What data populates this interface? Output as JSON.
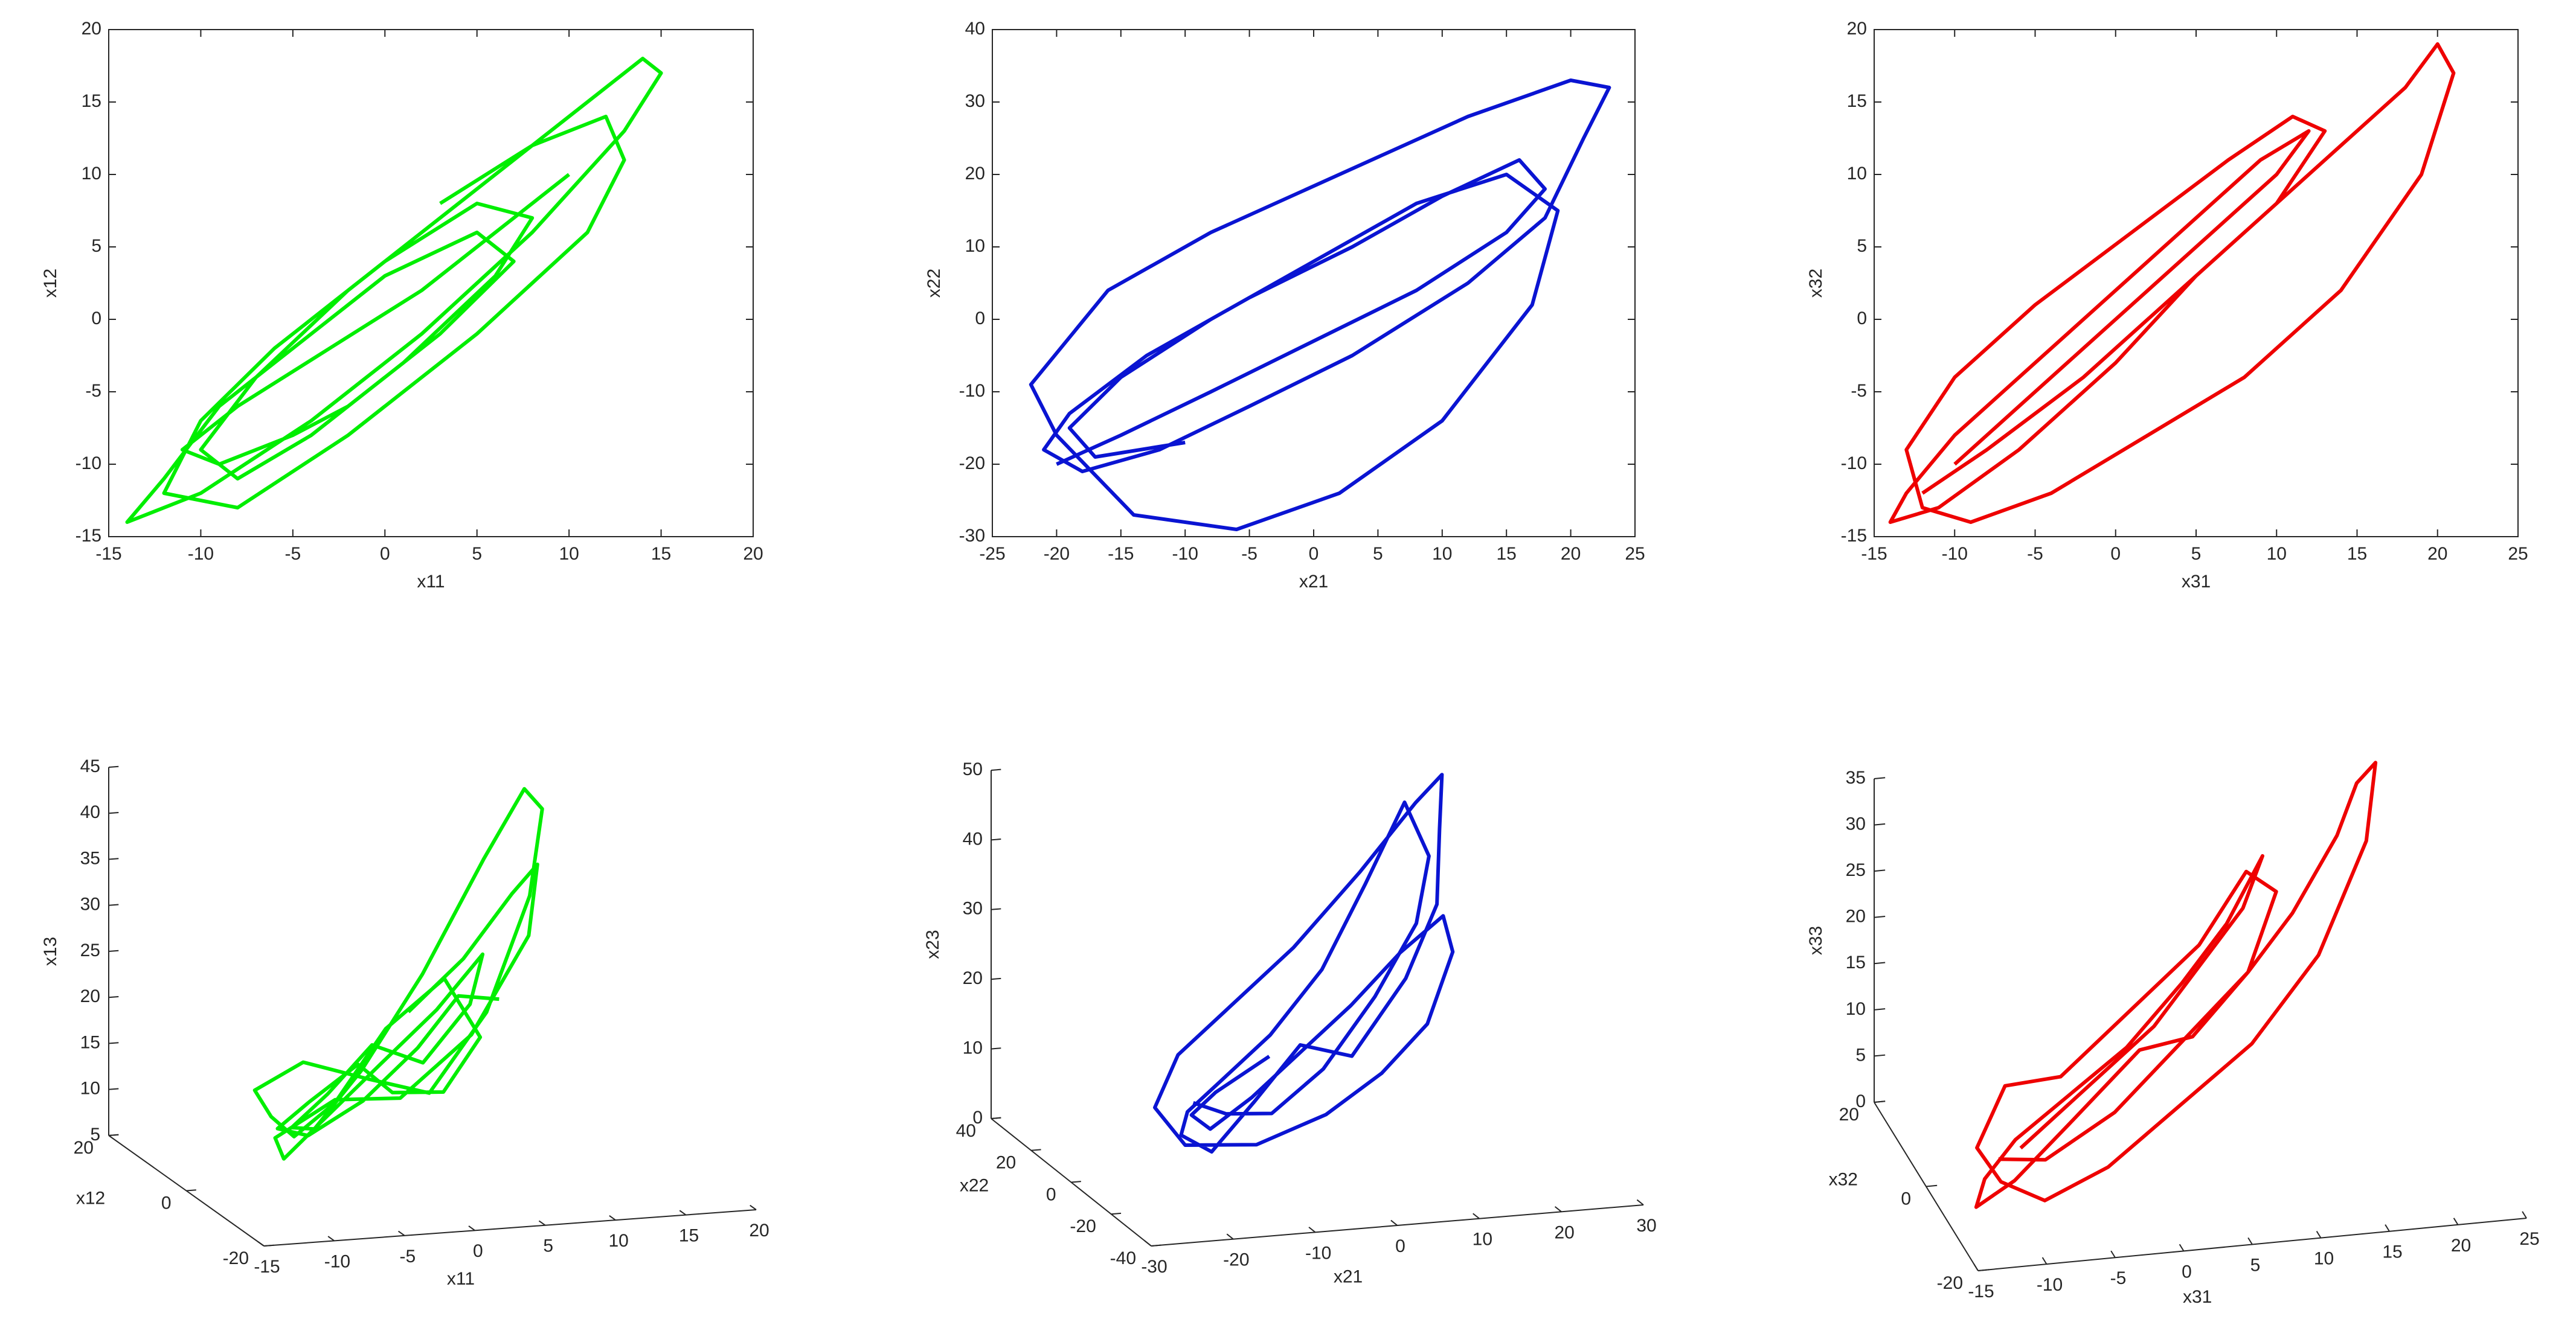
{
  "chart_data": [
    {
      "type": "line",
      "xlabel": "x11",
      "ylabel": "x12",
      "color": "#00ee00",
      "xlim": [
        -15,
        20
      ],
      "ylim": [
        -15,
        20
      ],
      "xticks": [
        -15,
        -10,
        -5,
        0,
        5,
        10,
        15,
        20
      ],
      "yticks": [
        -15,
        -10,
        -5,
        0,
        5,
        10,
        15,
        20
      ],
      "x": [
        10,
        6,
        2,
        -3,
        -8,
        -11,
        -9,
        -5,
        -2,
        3,
        7,
        5,
        0,
        -5,
        -9,
        -12,
        -14,
        -10,
        -4,
        2,
        8,
        13,
        15,
        14,
        10,
        4,
        -2,
        -7,
        -10,
        -8,
        -4,
        1,
        6,
        8,
        5,
        0,
        -6,
        -10,
        -12,
        -8,
        -2,
        5,
        11,
        13,
        12,
        8,
        3
      ],
      "y": [
        10,
        6,
        2,
        -2,
        -6,
        -9,
        -10,
        -8,
        -6,
        -1,
        4,
        6,
        3,
        -2,
        -6,
        -11,
        -14,
        -12,
        -7,
        -1,
        6,
        13,
        17,
        18,
        14,
        8,
        2,
        -4,
        -9,
        -11,
        -8,
        -3,
        3,
        7,
        8,
        4,
        -2,
        -7,
        -12,
        -13,
        -8,
        -1,
        6,
        11,
        14,
        12,
        8
      ]
    },
    {
      "type": "line",
      "xlabel": "x21",
      "ylabel": "x22",
      "color": "#0a14d2",
      "xlim": [
        -25,
        25
      ],
      "ylim": [
        -30,
        40
      ],
      "xticks": [
        -25,
        -20,
        -15,
        -10,
        -5,
        0,
        5,
        10,
        15,
        20,
        25
      ],
      "yticks": [
        -30,
        -20,
        -10,
        0,
        10,
        20,
        30,
        40
      ],
      "x": [
        -20,
        -15,
        -8,
        0,
        8,
        15,
        18,
        16,
        10,
        3,
        -5,
        -13,
        -19,
        -21,
        -18,
        -12,
        -5,
        3,
        12,
        18,
        21,
        23,
        20,
        12,
        2,
        -8,
        -16,
        -22,
        -20,
        -14,
        -6,
        2,
        10,
        17,
        19,
        15,
        8,
        0,
        -8,
        -15,
        -19,
        -17,
        -10
      ],
      "y": [
        -20,
        -16,
        -10,
        -3,
        4,
        12,
        18,
        22,
        17,
        10,
        3,
        -5,
        -13,
        -18,
        -21,
        -18,
        -12,
        -5,
        5,
        14,
        25,
        32,
        33,
        28,
        20,
        12,
        4,
        -9,
        -16,
        -27,
        -29,
        -24,
        -14,
        2,
        15,
        20,
        16,
        8,
        0,
        -8,
        -15,
        -19,
        -17
      ]
    },
    {
      "type": "line",
      "xlabel": "x31",
      "ylabel": "x32",
      "color": "#ee0000",
      "xlim": [
        -15,
        25
      ],
      "ylim": [
        -15,
        20
      ],
      "xticks": [
        -15,
        -10,
        -5,
        0,
        5,
        10,
        15,
        20,
        25
      ],
      "yticks": [
        -15,
        -10,
        -5,
        0,
        5,
        10,
        15,
        20
      ],
      "x": [
        -10,
        -6,
        -2,
        2,
        6,
        10,
        12,
        9,
        5,
        0,
        -5,
        -10,
        -13,
        -14,
        -11,
        -6,
        0,
        5,
        10,
        14,
        18,
        20,
        21,
        19,
        14,
        8,
        2,
        -4,
        -9,
        -12,
        -13,
        -10,
        -5,
        1,
        7,
        11,
        13,
        10,
        4,
        -2,
        -8,
        -12
      ],
      "y": [
        -10,
        -6,
        -2,
        2,
        6,
        10,
        13,
        11,
        7,
        2,
        -3,
        -8,
        -12,
        -14,
        -13,
        -9,
        -3,
        3,
        8,
        12,
        16,
        19,
        17,
        10,
        2,
        -4,
        -8,
        -12,
        -14,
        -13,
        -9,
        -4,
        1,
        6,
        11,
        14,
        13,
        8,
        2,
        -4,
        -9,
        -12
      ]
    },
    {
      "type": "line3d",
      "xlabel": "x11",
      "ylabel": "x12",
      "zlabel": "x13",
      "color": "#00ee00",
      "xlim": [
        -15,
        20
      ],
      "ylim": [
        -20,
        20
      ],
      "zlim": [
        5,
        45
      ],
      "xticks": [
        -15,
        -10,
        -5,
        0,
        5,
        10,
        15,
        20
      ],
      "yticks": [
        -20,
        0,
        20
      ],
      "zticks": [
        5,
        10,
        15,
        20,
        25,
        30,
        35,
        40,
        45
      ],
      "x": [
        10,
        6,
        2,
        -3,
        -8,
        -11,
        -9,
        -5,
        -2,
        3,
        7,
        5,
        0,
        -5,
        -9,
        -12,
        -14,
        -10,
        -4,
        2,
        8,
        13,
        15,
        14,
        10,
        4,
        -2,
        -7,
        -10,
        -8,
        -4,
        1,
        6,
        8,
        5,
        0,
        -6,
        -10,
        -12,
        -8,
        -2,
        5,
        11,
        13,
        12,
        8,
        3
      ],
      "y": [
        10,
        6,
        2,
        -2,
        -6,
        -9,
        -10,
        -8,
        -6,
        -1,
        4,
        6,
        3,
        -2,
        -6,
        -11,
        -14,
        -12,
        -7,
        -1,
        6,
        13,
        17,
        18,
        14,
        8,
        2,
        -4,
        -9,
        -11,
        -8,
        -3,
        3,
        7,
        8,
        4,
        -2,
        -7,
        -12,
        -13,
        -8,
        -1,
        6,
        11,
        14,
        12,
        8
      ],
      "z": [
        20,
        22,
        18,
        14,
        12,
        14,
        17,
        20,
        16,
        14,
        18,
        24,
        20,
        14,
        12,
        16,
        20,
        22,
        18,
        14,
        20,
        30,
        38,
        40,
        34,
        24,
        16,
        12,
        14,
        18,
        22,
        18,
        22,
        26,
        20,
        16,
        12,
        10,
        14,
        18,
        16,
        20,
        28,
        34,
        30,
        24,
        20
      ]
    },
    {
      "type": "line3d",
      "xlabel": "x21",
      "ylabel": "x22",
      "zlabel": "x23",
      "color": "#0a14d2",
      "xlim": [
        -30,
        30
      ],
      "ylim": [
        -40,
        40
      ],
      "zlim": [
        0,
        50
      ],
      "xticks": [
        -30,
        -20,
        -10,
        0,
        10,
        20,
        30
      ],
      "yticks": [
        -40,
        -20,
        0,
        20,
        40
      ],
      "zticks": [
        0,
        10,
        20,
        30,
        40,
        50
      ],
      "x": [
        -20,
        -15,
        -8,
        0,
        8,
        15,
        18,
        16,
        10,
        3,
        -5,
        -13,
        -19,
        -21,
        -18,
        -12,
        -5,
        3,
        12,
        18,
        21,
        23,
        20,
        12,
        2,
        -8,
        -16,
        -22,
        -20,
        -14,
        -6,
        2,
        10,
        17,
        19,
        15,
        8,
        0,
        -8,
        -15,
        -19,
        -17,
        -10
      ],
      "y": [
        -20,
        -16,
        -10,
        -3,
        4,
        12,
        18,
        22,
        17,
        10,
        3,
        -5,
        -13,
        -18,
        -21,
        -18,
        -12,
        -5,
        5,
        14,
        25,
        32,
        33,
        28,
        20,
        12,
        4,
        -9,
        -16,
        -27,
        -29,
        -24,
        -14,
        2,
        15,
        20,
        16,
        8,
        0,
        -8,
        -15,
        -19,
        -17
      ],
      "z": [
        15,
        12,
        10,
        14,
        22,
        30,
        38,
        45,
        35,
        25,
        18,
        14,
        12,
        10,
        8,
        14,
        20,
        16,
        24,
        32,
        40,
        46,
        42,
        34,
        26,
        20,
        16,
        12,
        8,
        10,
        14,
        18,
        22,
        28,
        30,
        24,
        18,
        14,
        10,
        8,
        12,
        16,
        20
      ]
    },
    {
      "type": "line3d",
      "xlabel": "x31",
      "ylabel": "x32",
      "zlabel": "x33",
      "color": "#ee0000",
      "xlim": [
        -15,
        25
      ],
      "ylim": [
        -20,
        20
      ],
      "zlim": [
        0,
        35
      ],
      "xticks": [
        -15,
        -10,
        -5,
        0,
        5,
        10,
        15,
        20,
        25
      ],
      "yticks": [
        -20,
        0,
        20
      ],
      "zticks": [
        0,
        5,
        10,
        15,
        20,
        25,
        30,
        35
      ],
      "x": [
        -10,
        -6,
        -2,
        2,
        6,
        10,
        12,
        9,
        5,
        0,
        -5,
        -10,
        -13,
        -14,
        -11,
        -6,
        0,
        5,
        10,
        14,
        18,
        20,
        21,
        19,
        14,
        8,
        2,
        -4,
        -9,
        -12,
        -13,
        -10,
        -5,
        1,
        7,
        11,
        13,
        10,
        4,
        -2,
        -8,
        -12
      ],
      "y": [
        -10,
        -6,
        -2,
        2,
        6,
        10,
        13,
        11,
        7,
        2,
        -3,
        -8,
        -12,
        -14,
        -13,
        -9,
        -3,
        3,
        8,
        12,
        16,
        19,
        17,
        10,
        2,
        -4,
        -8,
        -12,
        -14,
        -13,
        -9,
        -4,
        1,
        6,
        11,
        14,
        13,
        8,
        2,
        -4,
        -9,
        -12
      ],
      "z": [
        8,
        10,
        12,
        14,
        18,
        22,
        26,
        20,
        16,
        12,
        10,
        8,
        6,
        4,
        6,
        10,
        14,
        12,
        16,
        20,
        26,
        30,
        33,
        28,
        20,
        14,
        10,
        6,
        4,
        6,
        8,
        12,
        10,
        14,
        18,
        24,
        22,
        16,
        12,
        8,
        6,
        8
      ]
    }
  ]
}
